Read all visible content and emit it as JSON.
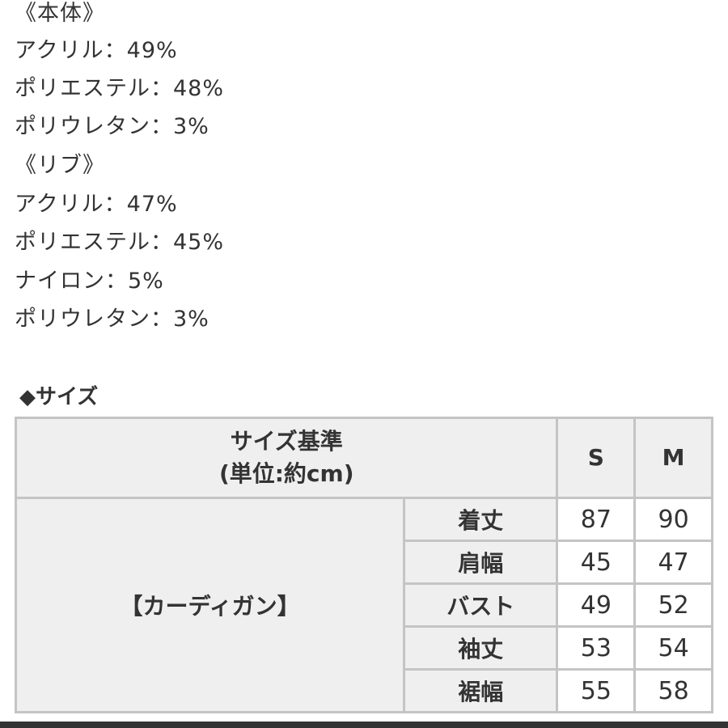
{
  "materials": [
    "《本体》",
    "アクリル：49%",
    "ポリエステル：48%",
    "ポリウレタン：3%",
    "《リブ》",
    "アクリル：47%",
    "ポリエステル：45%",
    "ナイロン：5%",
    "ポリウレタン：3%"
  ],
  "size_heading": "◆サイズ",
  "table": {
    "header_line1": "サイズ基準",
    "header_line2": "(単位:約cm)",
    "sizes": [
      "S",
      "M"
    ],
    "group": "【カーディガン】",
    "rows": [
      {
        "label": "着丈",
        "S": "87",
        "M": "90"
      },
      {
        "label": "肩幅",
        "S": "45",
        "M": "47"
      },
      {
        "label": "バスト",
        "S": "49",
        "M": "52"
      },
      {
        "label": "袖丈",
        "S": "53",
        "M": "54"
      },
      {
        "label": "裾幅",
        "S": "55",
        "M": "58"
      }
    ]
  }
}
